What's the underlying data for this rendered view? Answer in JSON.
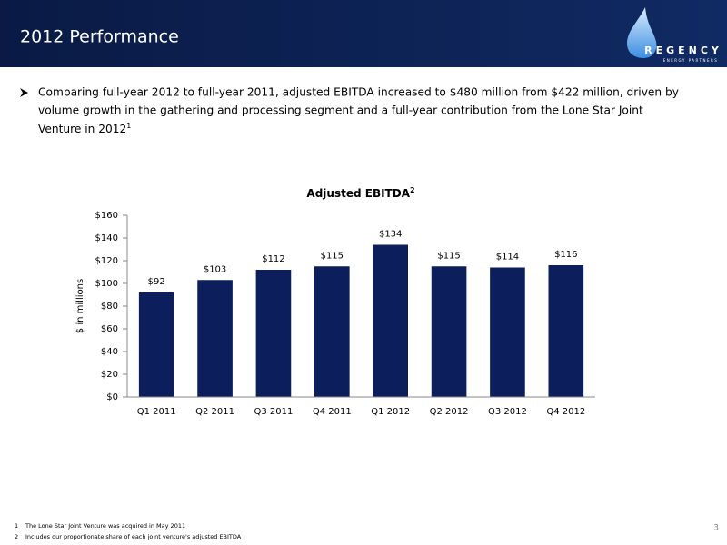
{
  "header": {
    "title": "2012 Performance",
    "logo_name": "REGENCY",
    "logo_tagline": "ENERGY PARTNERS"
  },
  "bullet": {
    "lines": [
      "Comparing full-year 2012 to full-year 2011, adjusted EBITDA increased to $480 million from $422 million, driven by",
      "volume growth in the gathering and processing segment and a full-year contribution from the Lone Star Joint",
      "Venture in 2012"
    ],
    "note_ref": "1"
  },
  "chart_data": {
    "type": "bar",
    "title": "Adjusted EBITDA",
    "title_note_ref": "2",
    "y_label": "$ in millions",
    "categories": [
      "Q1 2011",
      "Q2 2011",
      "Q3 2011",
      "Q4 2011",
      "Q1 2012",
      "Q2 2012",
      "Q3 2012",
      "Q4 2012"
    ],
    "values": [
      92,
      103,
      112,
      115,
      134,
      115,
      114,
      116
    ],
    "value_labels": [
      "$92",
      "$103",
      "$112",
      "$115",
      "$134",
      "$115",
      "$114",
      "$116"
    ],
    "color": "#0c1f5c",
    "ylim": [
      0,
      160
    ],
    "yticks": [
      {
        "value": 0,
        "label": "$0"
      },
      {
        "value": 20,
        "label": "$20"
      },
      {
        "value": 40,
        "label": "$40"
      },
      {
        "value": 60,
        "label": "$60"
      },
      {
        "value": 80,
        "label": "$80"
      },
      {
        "value": 100,
        "label": "$100"
      },
      {
        "value": 120,
        "label": "$120"
      },
      {
        "value": 140,
        "label": "$140"
      },
      {
        "value": 160,
        "label": "$160"
      }
    ],
    "grid": false
  },
  "footnotes": [
    {
      "num": "1",
      "text": "The Lone Star Joint Venture was acquired in May 2011"
    },
    {
      "num": "2",
      "text": "Includes our proportionate share of each joint venture's adjusted EBITDA"
    }
  ],
  "page_number": "3"
}
